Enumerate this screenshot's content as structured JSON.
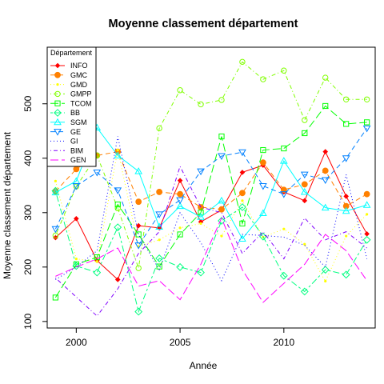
{
  "chart_data": {
    "type": "line",
    "title": "Moyenne classement département",
    "xlabel": "Année",
    "ylabel": "Moyenne classement département",
    "xlim": [
      1998.6,
      2014.4
    ],
    "ylim": [
      88,
      604
    ],
    "x_ticks": [
      2000,
      2005,
      2010
    ],
    "y_ticks": [
      100,
      200,
      300,
      400,
      500
    ],
    "grid": false,
    "legend_title": "Département",
    "legend_position": "top-left",
    "x": [
      1999,
      2000,
      2001,
      2002,
      2003,
      2004,
      2005,
      2006,
      2007,
      2008,
      2009,
      2010,
      2011,
      2012,
      2013,
      2014
    ],
    "series": [
      {
        "name": "INFO",
        "color": "#ff0000",
        "marker": "diamond",
        "dash": "solid",
        "values": [
          254,
          289,
          212,
          177,
          276,
          272,
          359,
          283,
          305,
          374,
          387,
          338,
          322,
          412,
          330,
          261
        ]
      },
      {
        "name": "GMC",
        "color": "#ff8000",
        "marker": "circle-filled",
        "dash": "dash",
        "values": [
          339,
          380,
          405,
          412,
          320,
          338,
          334,
          310,
          306,
          336,
          392,
          342,
          352,
          377,
          312,
          334
        ]
      },
      {
        "name": "GMD",
        "color": "#ffff00",
        "marker": "dot",
        "dash": "dot",
        "values": [
          358,
          215,
          210,
          415,
          238,
          250,
          272,
          280,
          257,
          322,
          255,
          270,
          242,
          174,
          257,
          297
        ]
      },
      {
        "name": "GMPP",
        "color": "#80ff00",
        "marker": "circle-open",
        "dash": "dotdash",
        "values": [
          258,
          348,
          405,
          308,
          198,
          455,
          525,
          499,
          507,
          577,
          545,
          561,
          470,
          548,
          508,
          508
        ]
      },
      {
        "name": "TCOM",
        "color": "#00ff00",
        "marker": "square-open",
        "dash": "longdash",
        "values": [
          144,
          205,
          218,
          315,
          260,
          201,
          260,
          300,
          440,
          280,
          415,
          418,
          446,
          496,
          463,
          466
        ]
      },
      {
        "name": "BB",
        "color": "#00ff80",
        "marker": "diamond-open",
        "dash": "twodash",
        "values": [
          340,
          202,
          190,
          273,
          118,
          216,
          200,
          190,
          285,
          310,
          256,
          184,
          155,
          195,
          186,
          250
        ]
      },
      {
        "name": "SGM",
        "color": "#00ffff",
        "marker": "triangle-up",
        "dash": "solid",
        "values": [
          337,
          358,
          456,
          405,
          376,
          274,
          312,
          292,
          322,
          252,
          299,
          395,
          338,
          309,
          303,
          314
        ]
      },
      {
        "name": "GE",
        "color": "#0080ff",
        "marker": "triangle-down",
        "dash": "dash",
        "values": [
          270,
          349,
          374,
          341,
          240,
          297,
          323,
          376,
          404,
          411,
          349,
          334,
          370,
          360,
          400,
          455
        ]
      },
      {
        "name": "GI",
        "color": "#0000ff",
        "marker": "none",
        "dash": "dot",
        "values": [
          177,
          200,
          230,
          440,
          260,
          195,
          300,
          245,
          175,
          260,
          258,
          255,
          240,
          200,
          370,
          215
        ]
      },
      {
        "name": "BIM",
        "color": "#8000ff",
        "marker": "none",
        "dash": "dotdash",
        "values": [
          180,
          145,
          110,
          160,
          225,
          265,
          385,
          310,
          300,
          225,
          265,
          215,
          290,
          250,
          265,
          235
        ]
      },
      {
        "name": "GEN",
        "color": "#ff00ff",
        "marker": "none",
        "dash": "longdash",
        "values": [
          183,
          200,
          215,
          235,
          165,
          175,
          140,
          205,
          290,
          195,
          135,
          170,
          205,
          260,
          230,
          175
        ]
      }
    ]
  }
}
